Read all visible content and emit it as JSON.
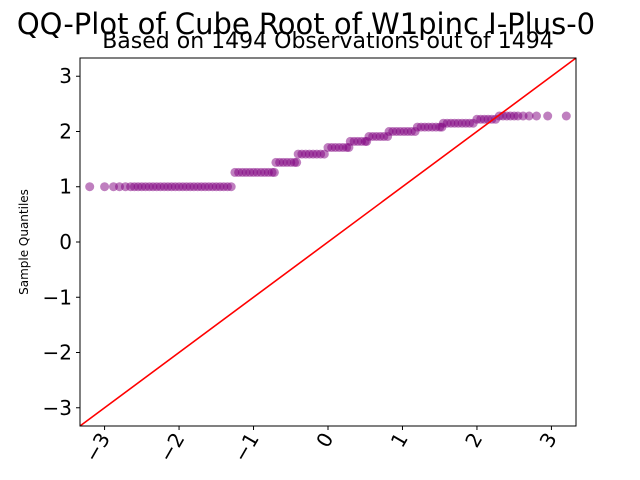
{
  "chart_data": {
    "type": "scatter",
    "title": "QQ-Plot of Cube Root of W1pinc I-Plus-0",
    "subtitle": "Based on 1494 Observations out of 1494",
    "xlabel": "",
    "ylabel": "Sample Quantiles",
    "xlim": [
      -3.33,
      3.33
    ],
    "ylim": [
      -3.33,
      3.33
    ],
    "x_ticks": [
      -3,
      -2,
      -1,
      0,
      1,
      2,
      3
    ],
    "y_ticks": [
      -3,
      -2,
      -1,
      0,
      1,
      2,
      3
    ],
    "x_tick_labels": [
      "−3",
      "−2",
      "−1",
      "0",
      "1",
      "2",
      "3"
    ],
    "y_tick_labels": [
      "−3",
      "−2",
      "−1",
      "0",
      "1",
      "2",
      "3"
    ],
    "grid": false,
    "series": [
      {
        "points": [
          [
            -3.2,
            1.0
          ],
          [
            -3.0,
            1.0
          ],
          [
            -2.88,
            1.0
          ],
          [
            -2.8,
            1.0
          ],
          [
            -2.72,
            1.0
          ],
          [
            -2.65,
            1.0
          ],
          [
            -2.6,
            1.0
          ],
          [
            -2.55,
            1.0
          ],
          [
            -2.5,
            1.0
          ],
          [
            -2.45,
            1.0
          ],
          [
            -2.4,
            1.0
          ],
          [
            -2.35,
            1.0
          ],
          [
            -2.3,
            1.0
          ],
          [
            -2.25,
            1.0
          ],
          [
            -2.2,
            1.0
          ],
          [
            -2.15,
            1.0
          ],
          [
            -2.1,
            1.0
          ],
          [
            -2.05,
            1.0
          ],
          [
            -2.0,
            1.0
          ],
          [
            -1.95,
            1.0
          ],
          [
            -1.9,
            1.0
          ],
          [
            -1.85,
            1.0
          ],
          [
            -1.8,
            1.0
          ],
          [
            -1.75,
            1.0
          ],
          [
            -1.7,
            1.0
          ],
          [
            -1.65,
            1.0
          ],
          [
            -1.6,
            1.0
          ],
          [
            -1.55,
            1.0
          ],
          [
            -1.5,
            1.0
          ],
          [
            -1.45,
            1.0
          ],
          [
            -1.4,
            1.0
          ],
          [
            -1.35,
            1.0
          ],
          [
            -1.3,
            1.0
          ],
          [
            -1.25,
            1.26
          ],
          [
            -1.2,
            1.26
          ],
          [
            -1.15,
            1.26
          ],
          [
            -1.1,
            1.26
          ],
          [
            -1.05,
            1.26
          ],
          [
            -1.0,
            1.26
          ],
          [
            -0.95,
            1.26
          ],
          [
            -0.9,
            1.26
          ],
          [
            -0.85,
            1.26
          ],
          [
            -0.8,
            1.26
          ],
          [
            -0.75,
            1.26
          ],
          [
            -0.72,
            1.26
          ],
          [
            -0.7,
            1.44
          ],
          [
            -0.65,
            1.44
          ],
          [
            -0.6,
            1.44
          ],
          [
            -0.55,
            1.44
          ],
          [
            -0.5,
            1.44
          ],
          [
            -0.45,
            1.44
          ],
          [
            -0.42,
            1.44
          ],
          [
            -0.4,
            1.59
          ],
          [
            -0.35,
            1.59
          ],
          [
            -0.3,
            1.59
          ],
          [
            -0.25,
            1.59
          ],
          [
            -0.2,
            1.59
          ],
          [
            -0.15,
            1.59
          ],
          [
            -0.1,
            1.59
          ],
          [
            -0.05,
            1.59
          ],
          [
            0.0,
            1.71
          ],
          [
            0.05,
            1.71
          ],
          [
            0.1,
            1.71
          ],
          [
            0.15,
            1.71
          ],
          [
            0.2,
            1.71
          ],
          [
            0.25,
            1.71
          ],
          [
            0.28,
            1.71
          ],
          [
            0.3,
            1.82
          ],
          [
            0.35,
            1.82
          ],
          [
            0.4,
            1.82
          ],
          [
            0.45,
            1.82
          ],
          [
            0.5,
            1.82
          ],
          [
            0.52,
            1.82
          ],
          [
            0.55,
            1.91
          ],
          [
            0.6,
            1.91
          ],
          [
            0.65,
            1.91
          ],
          [
            0.7,
            1.91
          ],
          [
            0.75,
            1.91
          ],
          [
            0.8,
            1.91
          ],
          [
            0.82,
            2.0
          ],
          [
            0.87,
            2.0
          ],
          [
            0.92,
            2.0
          ],
          [
            0.97,
            2.0
          ],
          [
            1.02,
            2.0
          ],
          [
            1.07,
            2.0
          ],
          [
            1.12,
            2.0
          ],
          [
            1.17,
            2.0
          ],
          [
            1.2,
            2.08
          ],
          [
            1.25,
            2.08
          ],
          [
            1.3,
            2.08
          ],
          [
            1.35,
            2.08
          ],
          [
            1.4,
            2.08
          ],
          [
            1.45,
            2.08
          ],
          [
            1.5,
            2.08
          ],
          [
            1.53,
            2.08
          ],
          [
            1.55,
            2.15
          ],
          [
            1.6,
            2.15
          ],
          [
            1.65,
            2.15
          ],
          [
            1.7,
            2.15
          ],
          [
            1.75,
            2.15
          ],
          [
            1.8,
            2.15
          ],
          [
            1.85,
            2.15
          ],
          [
            1.9,
            2.15
          ],
          [
            1.95,
            2.15
          ],
          [
            2.0,
            2.22
          ],
          [
            2.05,
            2.22
          ],
          [
            2.1,
            2.22
          ],
          [
            2.15,
            2.22
          ],
          [
            2.2,
            2.22
          ],
          [
            2.25,
            2.22
          ],
          [
            2.3,
            2.28
          ],
          [
            2.35,
            2.28
          ],
          [
            2.4,
            2.28
          ],
          [
            2.45,
            2.28
          ],
          [
            2.5,
            2.28
          ],
          [
            2.55,
            2.28
          ],
          [
            2.62,
            2.28
          ],
          [
            2.7,
            2.28
          ],
          [
            2.8,
            2.28
          ],
          [
            2.95,
            2.28
          ],
          [
            3.2,
            2.28
          ]
        ],
        "color": "#800080"
      }
    ],
    "reference_line": {
      "from": [
        -3.33,
        -3.33
      ],
      "to": [
        3.33,
        3.33
      ],
      "color": "#ff0000"
    }
  }
}
